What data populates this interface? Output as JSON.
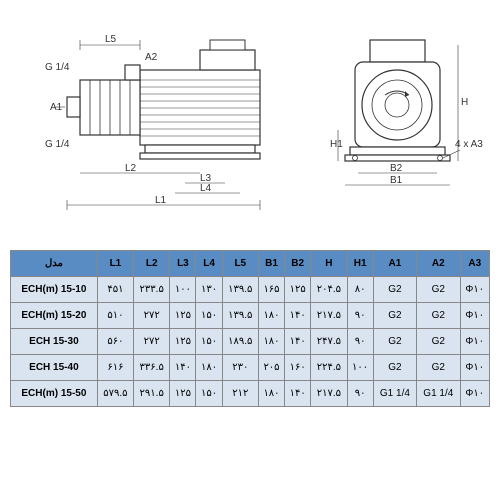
{
  "diagram": {
    "side_labels": [
      "G 1/4",
      "A1",
      "G 1/4",
      "L5",
      "A2",
      "L2",
      "L3",
      "L4",
      "L1"
    ],
    "front_labels": [
      "H",
      "H1",
      "B2",
      "B1",
      "4 x A3"
    ]
  },
  "table": {
    "header_bg": "#5a8cc4",
    "cell_bg": "#d9e4f0",
    "border_color": "#888888",
    "columns": [
      "مدل",
      "L1",
      "L2",
      "L3",
      "L4",
      "L5",
      "B1",
      "B2",
      "H",
      "H1",
      "A1",
      "A2",
      "A3"
    ],
    "rows": [
      [
        "ECH(m) 15-10",
        "۴۵۱",
        "۲۳۳.۵",
        "۱۰۰",
        "۱۳۰",
        "۱۳۹.۵",
        "۱۶۵",
        "۱۲۵",
        "۲۰۴.۵",
        "۸۰",
        "G2",
        "G2",
        "Φ۱۰"
      ],
      [
        "ECH(m) 15-20",
        "۵۱۰",
        "۲۷۲",
        "۱۲۵",
        "۱۵۰",
        "۱۳۹.۵",
        "۱۸۰",
        "۱۴۰",
        "۲۱۷.۵",
        "۹۰",
        "G2",
        "G2",
        "Φ۱۰"
      ],
      [
        "ECH 15-30",
        "۵۶۰",
        "۲۷۲",
        "۱۲۵",
        "۱۵۰",
        "۱۸۹.۵",
        "۱۸۰",
        "۱۴۰",
        "۲۴۷.۵",
        "۹۰",
        "G2",
        "G2",
        "Φ۱۰"
      ],
      [
        "ECH 15-40",
        "۶۱۶",
        "۳۳۶.۵",
        "۱۴۰",
        "۱۸۰",
        "۲۳۰",
        "۲۰۵",
        "۱۶۰",
        "۲۲۴.۵",
        "۱۰۰",
        "G2",
        "G2",
        "Φ۱۰"
      ],
      [
        "ECH(m) 15-50",
        "۵۷۹.۵",
        "۲۹۱.۵",
        "۱۲۵",
        "۱۵۰",
        "۲۱۲",
        "۱۸۰",
        "۱۴۰",
        "۲۱۷.۵",
        "۹۰",
        "G1  1/4",
        "G1  1/4",
        "Φ۱۰"
      ]
    ]
  }
}
